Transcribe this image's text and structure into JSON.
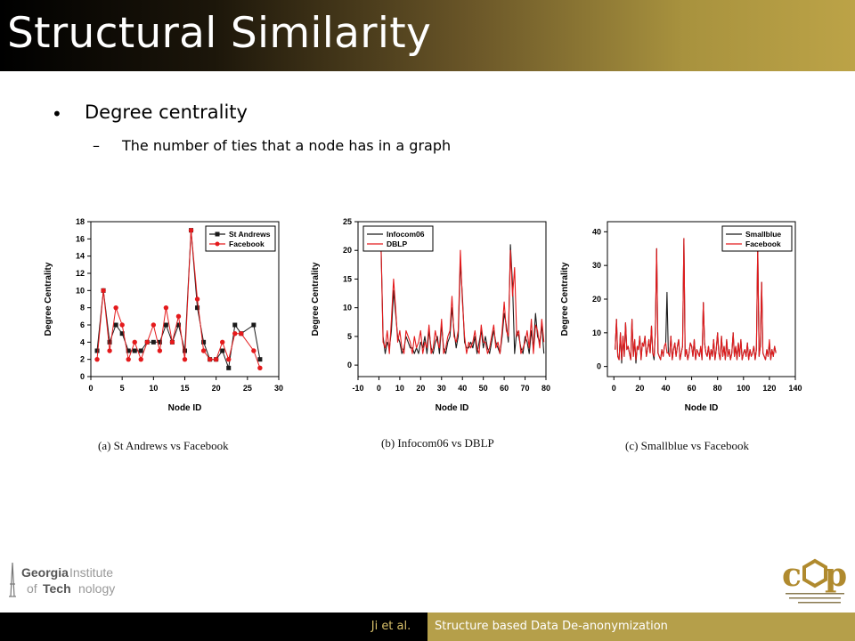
{
  "slide": {
    "title": "Structural Similarity",
    "bullet": "Degree centrality",
    "sub_bullet": "The number of ties that a node has in a graph",
    "bullet_marker": "•",
    "sub_marker": "–"
  },
  "footer": {
    "author": "Ji et al.",
    "topic": "Structure based Data De-anonymization"
  },
  "logos": {
    "left": "Georgia Institute of Technology",
    "right": "cop"
  },
  "colors": {
    "series_black": "#1a1a1a",
    "series_red": "#e41a1c",
    "gold": "#b59f4a"
  },
  "chart_data": [
    {
      "type": "line",
      "caption": "(a)  St Andrews vs Facebook",
      "xlabel": "Node ID",
      "ylabel": "Degree Centrality",
      "xlim": [
        0,
        30
      ],
      "ylim": [
        0,
        18
      ],
      "xticks": [
        0,
        5,
        10,
        15,
        20,
        25,
        30
      ],
      "yticks": [
        0,
        2,
        4,
        6,
        8,
        10,
        12,
        14,
        16,
        18
      ],
      "markers": true,
      "legend": "top-right",
      "series": [
        {
          "name": "St Andrews",
          "color": "#1a1a1a",
          "marker": "square",
          "x": [
            1,
            2,
            3,
            4,
            5,
            6,
            7,
            8,
            9,
            10,
            11,
            12,
            13,
            14,
            15,
            16,
            17,
            18,
            19,
            20,
            21,
            22,
            23,
            24,
            26,
            27
          ],
          "y": [
            3,
            10,
            4,
            6,
            5,
            3,
            3,
            3,
            4,
            4,
            4,
            6,
            4,
            6,
            3,
            17,
            8,
            4,
            2,
            2,
            3,
            1,
            6,
            5,
            6,
            2
          ]
        },
        {
          "name": "Facebook",
          "color": "#e41a1c",
          "marker": "circle",
          "x": [
            1,
            2,
            3,
            4,
            5,
            6,
            7,
            8,
            9,
            10,
            11,
            12,
            13,
            14,
            15,
            16,
            17,
            18,
            19,
            20,
            21,
            22,
            23,
            24,
            26,
            27
          ],
          "y": [
            2,
            10,
            3,
            8,
            6,
            2,
            4,
            2,
            4,
            6,
            3,
            8,
            4,
            7,
            2,
            17,
            9,
            3,
            2,
            2,
            4,
            2,
            5,
            5,
            3,
            1
          ]
        }
      ]
    },
    {
      "type": "line",
      "caption": "(b)  Infocom06  vs  DBLP",
      "xlabel": "Node ID",
      "ylabel": "Degree Centrality",
      "xlim": [
        -10,
        80
      ],
      "ylim": [
        -2,
        25
      ],
      "xticks": [
        -10,
        0,
        10,
        20,
        30,
        40,
        50,
        60,
        70,
        80
      ],
      "yticks": [
        0,
        5,
        10,
        15,
        20,
        25
      ],
      "markers": false,
      "legend": "top-left",
      "series": [
        {
          "name": "Infocom06",
          "color": "#1a1a1a",
          "x": [
            1,
            2,
            3,
            4,
            5,
            6,
            7,
            8,
            9,
            10,
            11,
            12,
            13,
            14,
            15,
            16,
            17,
            18,
            19,
            20,
            21,
            22,
            23,
            24,
            25,
            26,
            27,
            28,
            29,
            30,
            31,
            32,
            33,
            34,
            35,
            36,
            37,
            38,
            39,
            40,
            41,
            42,
            43,
            44,
            45,
            46,
            47,
            48,
            49,
            50,
            51,
            52,
            53,
            54,
            55,
            56,
            57,
            58,
            59,
            60,
            61,
            62,
            63,
            64,
            65,
            66,
            67,
            68,
            69,
            70,
            71,
            72,
            73,
            74,
            75,
            76,
            77,
            78,
            79
          ],
          "y": [
            21,
            5,
            2,
            4,
            3,
            6,
            13,
            9,
            5,
            4,
            2,
            3,
            5,
            4,
            3,
            3,
            2,
            3,
            2,
            4,
            3,
            5,
            2,
            6,
            3,
            2,
            4,
            5,
            2,
            7,
            3,
            2,
            4,
            5,
            10,
            6,
            3,
            5,
            18,
            12,
            4,
            3,
            3,
            4,
            3,
            5,
            2,
            4,
            6,
            3,
            5,
            3,
            2,
            4,
            6,
            4,
            3,
            2,
            5,
            9,
            7,
            4,
            21,
            14,
            2,
            6,
            5,
            3,
            2,
            5,
            4,
            2,
            6,
            3,
            9,
            5,
            4,
            7,
            2
          ]
        },
        {
          "name": "DBLP",
          "color": "#e41a1c",
          "x": [
            1,
            2,
            3,
            4,
            5,
            6,
            7,
            8,
            9,
            10,
            11,
            12,
            13,
            14,
            15,
            16,
            17,
            18,
            19,
            20,
            21,
            22,
            23,
            24,
            25,
            26,
            27,
            28,
            29,
            30,
            31,
            32,
            33,
            34,
            35,
            36,
            37,
            38,
            39,
            40,
            41,
            42,
            43,
            44,
            45,
            46,
            47,
            48,
            49,
            50,
            51,
            52,
            53,
            54,
            55,
            56,
            57,
            58,
            59,
            60,
            61,
            62,
            63,
            64,
            65,
            66,
            67,
            68,
            69,
            70,
            71,
            72,
            73,
            74,
            75,
            76,
            77,
            78,
            79
          ],
          "y": [
            21,
            4,
            3,
            6,
            2,
            8,
            15,
            10,
            4,
            6,
            3,
            2,
            6,
            5,
            4,
            2,
            5,
            3,
            4,
            6,
            2,
            4,
            3,
            7,
            2,
            3,
            6,
            4,
            3,
            8,
            2,
            3,
            5,
            6,
            12,
            5,
            4,
            6,
            20,
            11,
            5,
            2,
            4,
            3,
            4,
            6,
            3,
            2,
            7,
            4,
            4,
            2,
            3,
            5,
            7,
            3,
            4,
            2,
            6,
            11,
            6,
            5,
            20,
            12,
            17,
            5,
            6,
            2,
            3,
            4,
            6,
            3,
            8,
            2,
            7,
            6,
            3,
            8,
            4
          ]
        }
      ]
    },
    {
      "type": "line",
      "caption": "(c)  Smallblue  vs  Facebook",
      "xlabel": "Node ID",
      "ylabel": "Degree Centrality",
      "xlim": [
        -5,
        140
      ],
      "ylim": [
        -3,
        43
      ],
      "xticks": [
        0,
        20,
        40,
        60,
        80,
        100,
        120,
        140
      ],
      "yticks": [
        0,
        10,
        20,
        30,
        40
      ],
      "markers": false,
      "legend": "top-right",
      "series": [
        {
          "name": "Smallblue",
          "color": "#1a1a1a",
          "x": [
            1,
            2,
            3,
            4,
            5,
            6,
            7,
            8,
            9,
            10,
            11,
            12,
            13,
            14,
            15,
            16,
            17,
            18,
            19,
            20,
            21,
            22,
            23,
            24,
            25,
            26,
            27,
            28,
            29,
            30,
            31,
            32,
            33,
            34,
            35,
            36,
            37,
            38,
            39,
            40,
            41,
            42,
            43,
            44,
            45,
            46,
            47,
            48,
            49,
            50,
            51,
            52,
            53,
            54,
            55,
            56,
            57,
            58,
            59,
            60,
            61,
            62,
            63,
            64,
            65,
            66,
            67,
            68,
            69,
            70,
            71,
            72,
            73,
            74,
            75,
            76,
            77,
            78,
            79,
            80,
            81,
            82,
            83,
            84,
            85,
            86,
            87,
            88,
            89,
            90,
            91,
            92,
            93,
            94,
            95,
            96,
            97,
            98,
            99,
            100,
            101,
            102,
            103,
            104,
            105,
            106,
            107,
            108,
            109,
            110,
            111,
            112,
            113,
            114,
            115,
            116,
            117,
            118,
            119,
            120,
            121,
            122,
            123,
            124,
            125
          ],
          "y": [
            5,
            14,
            3,
            2,
            10,
            1,
            9,
            3,
            13,
            5,
            6,
            4,
            2,
            14,
            3,
            8,
            1,
            6,
            5,
            9,
            2,
            7,
            6,
            9,
            3,
            5,
            8,
            4,
            12,
            4,
            2,
            10,
            35,
            4,
            3,
            2,
            5,
            3,
            6,
            7,
            22,
            4,
            3,
            9,
            2,
            5,
            7,
            3,
            6,
            8,
            2,
            4,
            6,
            38,
            3,
            5,
            2,
            4,
            7,
            6,
            3,
            8,
            2,
            5,
            4,
            3,
            6,
            2,
            19,
            7,
            4,
            3,
            6,
            2,
            5,
            3,
            8,
            2,
            5,
            10,
            4,
            2,
            9,
            3,
            6,
            2,
            8,
            3,
            5,
            2,
            4,
            10,
            3,
            6,
            2,
            7,
            3,
            8,
            2,
            4,
            5,
            3,
            7,
            2,
            5,
            3,
            4,
            6,
            2,
            5,
            36,
            3,
            6,
            25,
            4,
            3,
            2,
            5,
            3,
            7,
            2,
            5,
            3,
            6,
            4
          ]
        },
        {
          "name": "Facebook",
          "color": "#e41a1c",
          "x": [
            1,
            2,
            3,
            4,
            5,
            6,
            7,
            8,
            9,
            10,
            11,
            12,
            13,
            14,
            15,
            16,
            17,
            18,
            19,
            20,
            21,
            22,
            23,
            24,
            25,
            26,
            27,
            28,
            29,
            30,
            31,
            32,
            33,
            34,
            35,
            36,
            37,
            38,
            39,
            40,
            41,
            42,
            43,
            44,
            45,
            46,
            47,
            48,
            49,
            50,
            51,
            52,
            53,
            54,
            55,
            56,
            57,
            58,
            59,
            60,
            61,
            62,
            63,
            64,
            65,
            66,
            67,
            68,
            69,
            70,
            71,
            72,
            73,
            74,
            75,
            76,
            77,
            78,
            79,
            80,
            81,
            82,
            83,
            84,
            85,
            86,
            87,
            88,
            89,
            90,
            91,
            92,
            93,
            94,
            95,
            96,
            97,
            98,
            99,
            100,
            101,
            102,
            103,
            104,
            105,
            106,
            107,
            108,
            109,
            110,
            111,
            112,
            113,
            114,
            115,
            116,
            117,
            118,
            119,
            120,
            121,
            122,
            123,
            124,
            125
          ],
          "y": [
            5,
            14,
            3,
            2,
            10,
            2,
            9,
            3,
            13,
            5,
            6,
            4,
            2,
            14,
            3,
            8,
            2,
            6,
            5,
            9,
            2,
            7,
            6,
            9,
            3,
            5,
            8,
            4,
            12,
            4,
            3,
            10,
            35,
            4,
            3,
            2,
            5,
            3,
            6,
            7,
            4,
            4,
            3,
            9,
            2,
            5,
            7,
            3,
            6,
            8,
            2,
            4,
            6,
            38,
            3,
            5,
            2,
            4,
            7,
            6,
            3,
            8,
            2,
            5,
            4,
            3,
            6,
            2,
            19,
            7,
            4,
            3,
            6,
            2,
            5,
            3,
            8,
            2,
            5,
            10,
            4,
            2,
            9,
            3,
            6,
            2,
            8,
            3,
            5,
            2,
            4,
            10,
            3,
            6,
            2,
            7,
            3,
            8,
            2,
            4,
            5,
            3,
            7,
            2,
            5,
            3,
            4,
            6,
            2,
            5,
            36,
            3,
            6,
            25,
            4,
            3,
            2,
            5,
            3,
            8,
            2,
            5,
            3,
            6,
            4
          ]
        }
      ]
    }
  ]
}
